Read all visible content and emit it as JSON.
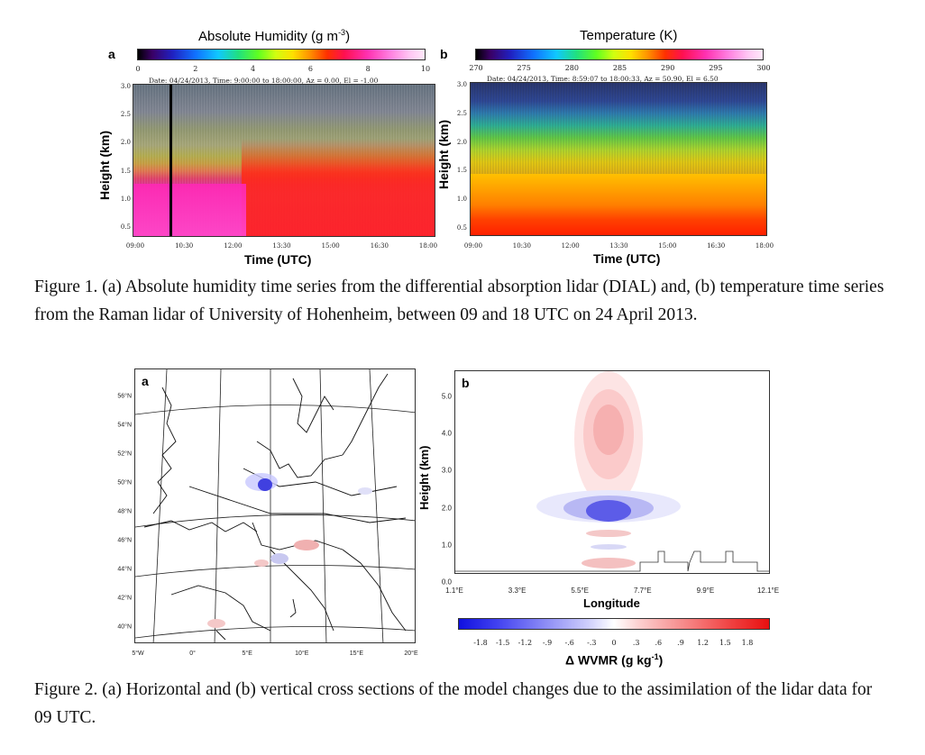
{
  "figure1": {
    "panel_a": {
      "label": "a",
      "title": "Absolute Humidity (g m",
      "title_sup": "-3",
      "title_end": ")",
      "colorbar_ticks": [
        "0",
        "2",
        "4",
        "6",
        "8",
        "10"
      ],
      "info": "Date: 04/24/2013, Time:  9:00:00 to 18:00:00, Az =   0.00, El =  -1.00",
      "y_ticks": [
        "3.0",
        "2.5",
        "2.0",
        "1.5",
        "1.0",
        "0.5"
      ],
      "x_ticks": [
        "09:00",
        "10:30",
        "12:00",
        "13:30",
        "15:00",
        "16:30",
        "18:00"
      ],
      "ylabel": "Height (km)",
      "xlabel": "Time (UTC)"
    },
    "panel_b": {
      "label": "b",
      "title": "Temperature (K)",
      "colorbar_ticks": [
        "270",
        "275",
        "280",
        "285",
        "290",
        "295",
        "300"
      ],
      "info": "Date: 04/24/2013, Time:  8:59:07 to 18:00:33, Az =  50.90, El =   6.50",
      "y_ticks": [
        "3.0",
        "2.5",
        "2.0",
        "1.5",
        "1.0",
        "0.5"
      ],
      "x_ticks": [
        "09:00",
        "10:30",
        "12:00",
        "13:30",
        "15:00",
        "16:30",
        "18:00"
      ],
      "ylabel": "Height (km)",
      "xlabel": "Time (UTC)"
    },
    "caption": "Figure 1. (a) Absolute humidity time series from the differential absorption lidar (DIAL) and, (b) temperature time series from the Raman lidar of University of Hohenheim, between 09 and 18 UTC on 24 April 2013."
  },
  "figure2": {
    "panel_a": {
      "label": "a",
      "lat_ticks": [
        "56°N",
        "54°N",
        "52°N",
        "50°N",
        "48°N",
        "46°N",
        "44°N",
        "42°N",
        "40°N"
      ],
      "lon_ticks": [
        "5°W",
        "0°",
        "5°E",
        "10°E",
        "15°E",
        "20°E"
      ]
    },
    "panel_b": {
      "label": "b",
      "y_ticks": [
        "5.0",
        "4.0",
        "3.0",
        "2.0",
        "1.0",
        "0.0"
      ],
      "x_ticks": [
        "1.1°E",
        "3.3°E",
        "5.5°E",
        "7.7°E",
        "9.9°E",
        "12.1°E"
      ],
      "ylabel": "Height (km)",
      "xlabel": "Longitude"
    },
    "colorbar": {
      "ticks": [
        "-1.8",
        "-1.5",
        "-1.2",
        "-.9",
        "-.6",
        "-.3",
        "0",
        ".3",
        ".6",
        ".9",
        "1.2",
        "1.5",
        "1.8"
      ],
      "label": "Δ WVMR (g kg",
      "label_sup": "-1",
      "label_end": ")"
    },
    "caption": "Figure 2. (a) Horizontal and (b) vertical cross sections of the model changes due to the assimilation of the lidar data for 09 UTC."
  }
}
